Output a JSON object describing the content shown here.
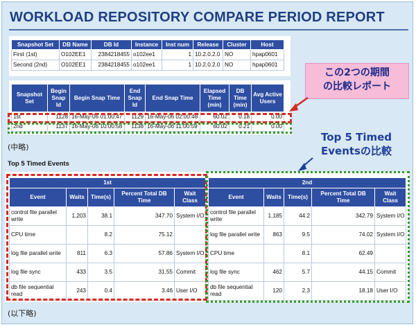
{
  "report_title": "WORKLOAD REPOSITORY COMPARE PERIOD REPORT",
  "snapshot_table": {
    "headers": [
      "Snapshot Set",
      "DB Name",
      "DB Id",
      "Instance",
      "Inst num",
      "Release",
      "Cluster",
      "Host"
    ],
    "rows": [
      [
        "First (1st)",
        "O102EE1",
        "2384218455",
        "o102ee1",
        "1",
        "10.2.0.2.0",
        "NO",
        "hpap0601"
      ],
      [
        "Second (2nd)",
        "O102EE1",
        "2384218455",
        "o102ee1",
        "1",
        "10.2.0.2.0",
        "NO",
        "hpap0601"
      ]
    ]
  },
  "period_table": {
    "headers": [
      "Snapshot Set",
      "Begin Snap Id",
      "Begin Snap Time",
      "End Snap Id",
      "End Snap Time",
      "Elapsed Time (min)",
      "DB Time (min)",
      "Avg Active Users"
    ],
    "rows": [
      [
        "1st",
        "1128",
        "16-May-06 01:00:47",
        "1129",
        "16-May-06 02:00:48",
        "60.02",
        "0.18",
        "0.00"
      ],
      [
        "2nd",
        "1137",
        "16-May-06 10:00:58",
        "1138",
        "16-May-06 11:00:59",
        "60.02",
        "0.21",
        "0.00"
      ]
    ]
  },
  "callout_periods": [
    "この2つの期間",
    "の比較レポート"
  ],
  "callout_top5": [
    "Top 5 Timed",
    "Eventsの比較"
  ],
  "note_omitted": "(中略)",
  "note_omitted_rest": "(以下略)",
  "top5_heading": "Top 5 Timed Events",
  "events_table": {
    "group_first": "1st",
    "group_second": "2nd",
    "headers": [
      "Event",
      "Waits",
      "Time(s)",
      "Percent Total DB Time",
      "Wait Class"
    ],
    "first": [
      [
        "control file parallel write",
        "1,203",
        "38.1",
        "347.70",
        "System I/O"
      ],
      [
        "CPU time",
        "",
        "8.2",
        "75.12",
        ""
      ],
      [
        "log file parallel write",
        "811",
        "6.3",
        "57.86",
        "System I/O"
      ],
      [
        "log file sync",
        "433",
        "3.5",
        "31.55",
        "Commit"
      ],
      [
        "db file sequential read",
        "243",
        "0.4",
        "3.46",
        "User I/O"
      ]
    ],
    "second": [
      [
        "control file parallel write",
        "1,185",
        "44.2",
        "342.79",
        "System I/O"
      ],
      [
        "log file parallel write",
        "863",
        "9.5",
        "74.02",
        "System I/O"
      ],
      [
        "CPU time",
        "",
        "8.1",
        "62.49",
        ""
      ],
      [
        "log file sync",
        "462",
        "5.7",
        "44.15",
        "Commit"
      ],
      [
        "db file sequential read",
        "120",
        "2.3",
        "18.18",
        "User I/O"
      ]
    ]
  },
  "colors": {
    "header_blue": "#2e4ea2",
    "title_blue": "#1e3f82",
    "highlight_red": "#d42a24",
    "highlight_green": "#2f9a23",
    "callout_pink": "#f7bcd7"
  }
}
